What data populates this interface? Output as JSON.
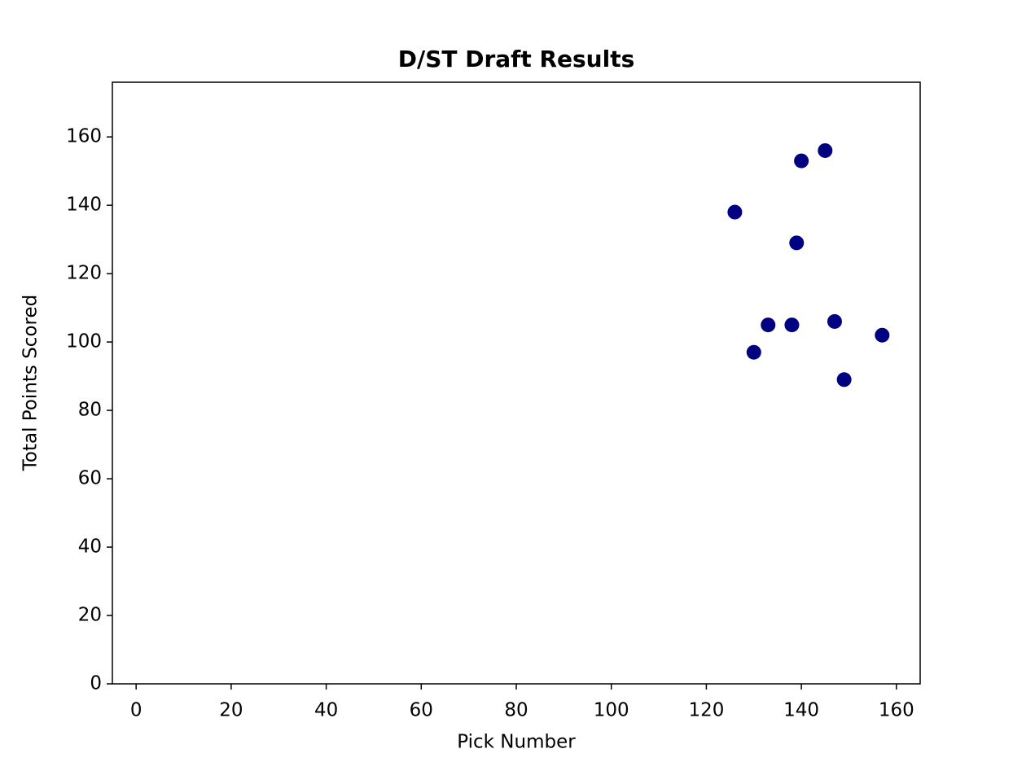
{
  "chart_data": {
    "type": "scatter",
    "title": "D/ST Draft Results",
    "x_label": "Pick Number",
    "y_label": "Total Points Scored",
    "x": [
      126,
      130,
      133,
      138,
      139,
      140,
      145,
      147,
      149,
      157
    ],
    "values": [
      138,
      97,
      105,
      105,
      129,
      153,
      156,
      106,
      89,
      102
    ],
    "color": "#000080",
    "xlim": [
      -5,
      165
    ],
    "xticks": [
      0,
      20,
      40,
      60,
      80,
      100,
      120,
      140,
      160
    ],
    "ylim": [
      0,
      176
    ],
    "yticks": [
      0,
      20,
      40,
      60,
      80,
      100,
      120,
      140,
      160
    ],
    "grid": false
  }
}
